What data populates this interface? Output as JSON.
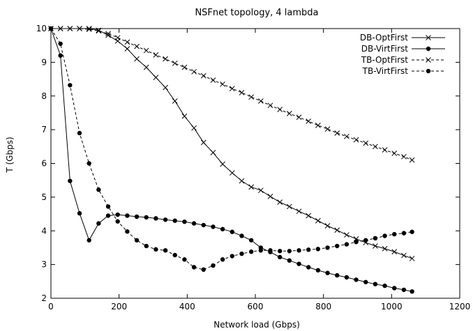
{
  "chart_data": {
    "type": "line",
    "title": "NSFnet topology, 4 lambda",
    "xlabel": "Network load (Gbps)",
    "ylabel": "T (Gbps)",
    "xlim": [
      0,
      1200
    ],
    "ylim": [
      2,
      10
    ],
    "xticks": [
      0,
      200,
      400,
      600,
      800,
      1000,
      1200
    ],
    "yticks": [
      2,
      3,
      4,
      5,
      6,
      7,
      8,
      9,
      10
    ],
    "grid": false,
    "legend_position": "top-right",
    "series": [
      {
        "name": "DB-OptFirst",
        "line": "solid",
        "marker": "x",
        "x": [
          0,
          28,
          56,
          84,
          112,
          140,
          168,
          196,
          224,
          252,
          280,
          308,
          336,
          364,
          392,
          420,
          448,
          476,
          504,
          532,
          560,
          588,
          616,
          644,
          672,
          700,
          728,
          756,
          784,
          812,
          840,
          868,
          896,
          924,
          952,
          980,
          1008,
          1036,
          1060
        ],
        "y": [
          10,
          10,
          10,
          10,
          10,
          9.95,
          9.8,
          9.63,
          9.4,
          9.1,
          8.85,
          8.55,
          8.25,
          7.85,
          7.4,
          7.05,
          6.62,
          6.32,
          5.98,
          5.72,
          5.48,
          5.3,
          5.2,
          5.02,
          4.85,
          4.72,
          4.58,
          4.45,
          4.3,
          4.15,
          4.02,
          3.88,
          3.76,
          3.65,
          3.55,
          3.47,
          3.38,
          3.27,
          3.18
        ]
      },
      {
        "name": "DB-VirtFirst",
        "line": "solid",
        "marker": "filled-circle",
        "x": [
          0,
          28,
          56,
          84,
          112,
          140,
          168,
          196,
          224,
          252,
          280,
          308,
          336,
          364,
          392,
          420,
          448,
          476,
          504,
          532,
          560,
          588,
          616,
          644,
          672,
          700,
          728,
          756,
          784,
          812,
          840,
          868,
          896,
          924,
          952,
          980,
          1008,
          1036,
          1060
        ],
        "y": [
          10,
          9.2,
          5.48,
          4.52,
          3.72,
          4.22,
          4.45,
          4.48,
          4.45,
          4.42,
          4.4,
          4.37,
          4.33,
          4.3,
          4.27,
          4.22,
          4.17,
          4.12,
          4.05,
          3.97,
          3.85,
          3.72,
          3.5,
          3.37,
          3.22,
          3.12,
          3.02,
          2.92,
          2.83,
          2.75,
          2.68,
          2.62,
          2.55,
          2.48,
          2.42,
          2.37,
          2.3,
          2.25,
          2.2
        ]
      },
      {
        "name": "TB-OptFirst",
        "line": "dashed",
        "marker": "x",
        "x": [
          0,
          28,
          56,
          84,
          112,
          140,
          168,
          196,
          224,
          252,
          280,
          308,
          336,
          364,
          392,
          420,
          448,
          476,
          504,
          532,
          560,
          588,
          616,
          644,
          672,
          700,
          728,
          756,
          784,
          812,
          840,
          868,
          896,
          924,
          952,
          980,
          1008,
          1036,
          1060
        ],
        "y": [
          10,
          10,
          10,
          10,
          9.98,
          9.93,
          9.85,
          9.73,
          9.6,
          9.47,
          9.35,
          9.22,
          9.1,
          8.97,
          8.85,
          8.72,
          8.6,
          8.47,
          8.35,
          8.22,
          8.1,
          7.97,
          7.85,
          7.72,
          7.6,
          7.48,
          7.37,
          7.25,
          7.13,
          7.02,
          6.9,
          6.8,
          6.7,
          6.6,
          6.5,
          6.4,
          6.3,
          6.2,
          6.1
        ]
      },
      {
        "name": "TB-VirtFirst",
        "line": "dashed",
        "marker": "filled-circle",
        "x": [
          0,
          28,
          56,
          84,
          112,
          140,
          168,
          196,
          224,
          252,
          280,
          308,
          336,
          364,
          392,
          420,
          448,
          476,
          504,
          532,
          560,
          588,
          616,
          644,
          672,
          700,
          728,
          756,
          784,
          812,
          840,
          868,
          896,
          924,
          952,
          980,
          1008,
          1036,
          1060
        ],
        "y": [
          10,
          9.55,
          8.32,
          6.9,
          6.0,
          5.22,
          4.72,
          4.28,
          3.98,
          3.72,
          3.55,
          3.45,
          3.42,
          3.28,
          3.15,
          2.92,
          2.85,
          2.97,
          3.15,
          3.25,
          3.32,
          3.38,
          3.42,
          3.42,
          3.4,
          3.4,
          3.42,
          3.44,
          3.46,
          3.5,
          3.55,
          3.6,
          3.67,
          3.72,
          3.78,
          3.85,
          3.9,
          3.93,
          3.97
        ]
      }
    ]
  }
}
